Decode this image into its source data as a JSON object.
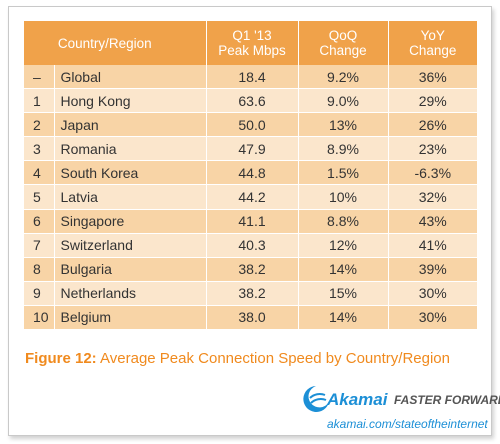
{
  "table": {
    "headers": {
      "country": "Country/Region",
      "peak_line1": "Q1 '13",
      "peak_line2": "Peak Mbps",
      "qoq_line1": "QoQ",
      "qoq_line2": "Change",
      "yoy_line1": "YoY",
      "yoy_line2": "Change"
    },
    "rows": [
      {
        "rank": "–",
        "country": "Global",
        "peak": "18.4",
        "qoq": "9.2%",
        "yoy": "36%"
      },
      {
        "rank": "1",
        "country": "Hong Kong",
        "peak": "63.6",
        "qoq": "9.0%",
        "yoy": "29%"
      },
      {
        "rank": "2",
        "country": "Japan",
        "peak": "50.0",
        "qoq": "13%",
        "yoy": "26%"
      },
      {
        "rank": "3",
        "country": "Romania",
        "peak": "47.9",
        "qoq": "8.9%",
        "yoy": "23%"
      },
      {
        "rank": "4",
        "country": "South Korea",
        "peak": "44.8",
        "qoq": "1.5%",
        "yoy": "-6.3%"
      },
      {
        "rank": "5",
        "country": "Latvia",
        "peak": "44.2",
        "qoq": "10%",
        "yoy": "32%"
      },
      {
        "rank": "6",
        "country": "Singapore",
        "peak": "41.1",
        "qoq": "8.8%",
        "yoy": "43%"
      },
      {
        "rank": "7",
        "country": "Switzerland",
        "peak": "40.3",
        "qoq": "12%",
        "yoy": "41%"
      },
      {
        "rank": "8",
        "country": "Bulgaria",
        "peak": "38.2",
        "qoq": "14%",
        "yoy": "39%"
      },
      {
        "rank": "9",
        "country": "Netherlands",
        "peak": "38.2",
        "qoq": "15%",
        "yoy": "30%"
      },
      {
        "rank": "10",
        "country": "Belgium",
        "peak": "38.0",
        "qoq": "14%",
        "yoy": "30%"
      }
    ]
  },
  "caption": {
    "label": "Figure 12:",
    "text": "Average Peak Connection Speed by Country/Region"
  },
  "brand": {
    "logo_name": "Akamai",
    "slogan": "FASTER FORWARD",
    "url": "akamai.com/stateoftheinternet",
    "logo_icon": "akamai-wave-icon"
  },
  "colors": {
    "header_bg": "#f0a24a",
    "row_dark": "#f8d4a6",
    "row_light": "#fbe6cc",
    "caption": "#f08a1e",
    "brand_blue": "#1c8fd6"
  }
}
